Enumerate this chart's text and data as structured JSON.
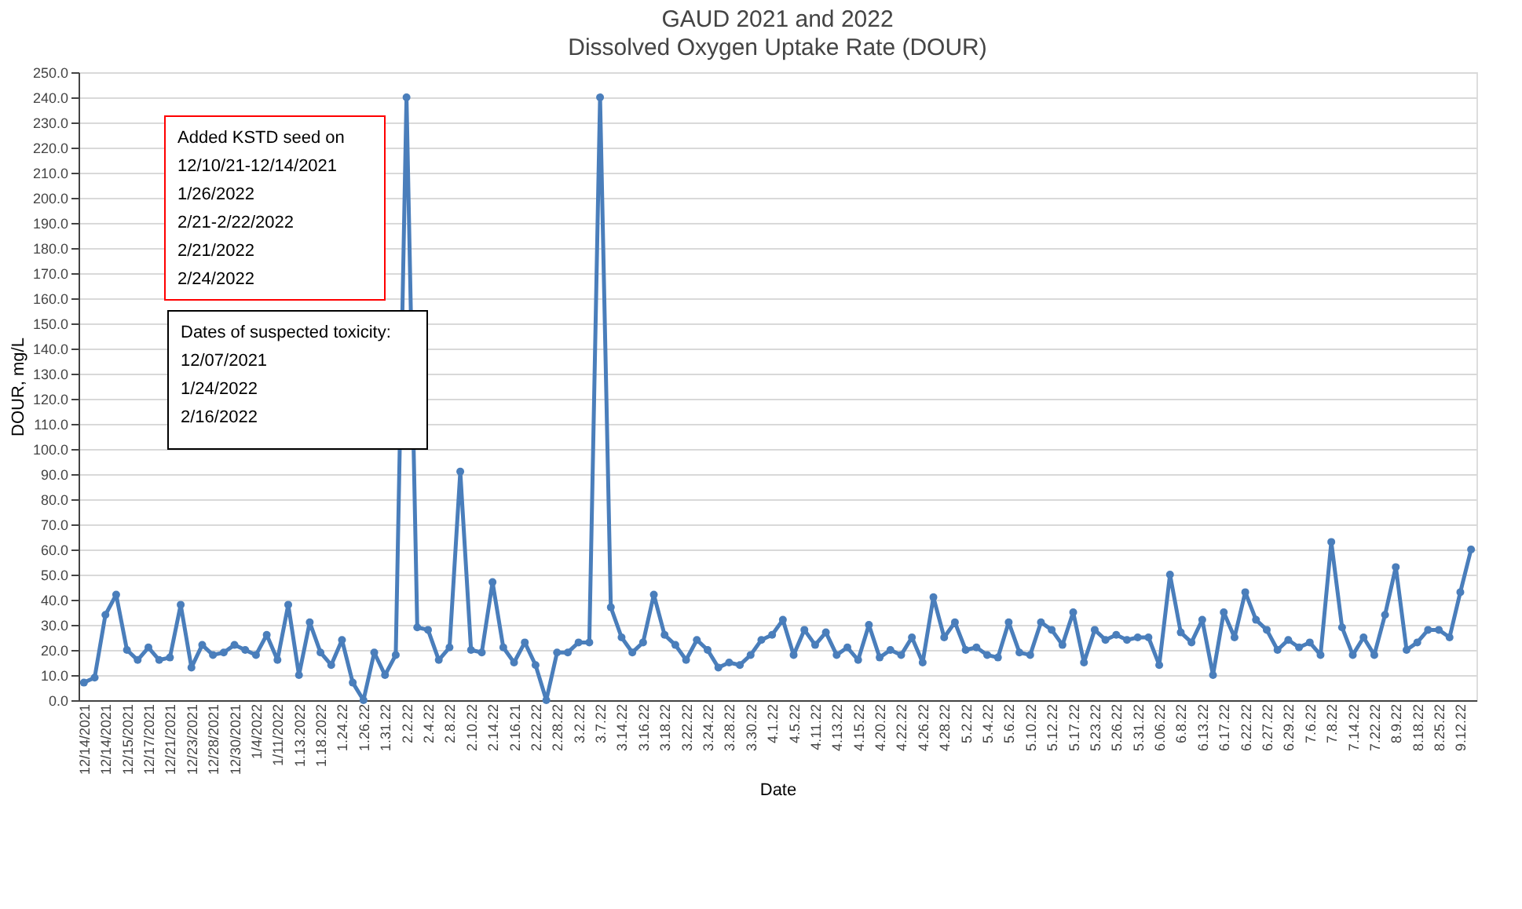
{
  "chart_data": {
    "type": "line",
    "title": "GAUD 2021 and 2022",
    "subtitle": "Dissolved Oxygen Uptake Rate (DOUR)",
    "xlabel": "Date",
    "ylabel": "DOUR, mg/L",
    "categories": [
      "12/14/2021",
      null,
      "12/14/2021",
      null,
      "12/15/2021",
      null,
      "12/17/2021",
      null,
      "12/21/2021",
      null,
      "12/23/2021",
      null,
      "12/28/2021",
      null,
      "12/30/2021",
      null,
      "1/4/2022",
      null,
      "1/11/2022",
      null,
      "1.13.2022",
      null,
      "1.18.2022",
      null,
      "1.24.22",
      null,
      "1.26.22",
      null,
      "1.31.22",
      null,
      "2.2.22",
      null,
      "2.4.22",
      null,
      "2.8.22",
      null,
      "2.10.22",
      null,
      "2.14.22",
      null,
      "2.16.21",
      null,
      "2.22.22",
      null,
      "2.28.22",
      null,
      "3.2.22",
      null,
      "3.7.22",
      null,
      "3.14.22",
      null,
      "3.16.22",
      null,
      "3.18.22",
      null,
      "3.22.22",
      null,
      "3.24.22",
      null,
      "3.28.22",
      null,
      "3.30.22",
      null,
      "4.1.22",
      null,
      "4.5.22",
      null,
      "4.11.22",
      null,
      "4.13.22",
      null,
      "4.15.22",
      null,
      "4.20.22",
      null,
      "4.22.22",
      null,
      "4.26.22",
      null,
      "4.28.22",
      null,
      "5.2.22",
      null,
      "5.4.22",
      null,
      "5.6.22",
      null,
      "5.10.22",
      null,
      "5.12.22",
      null,
      "5.17.22",
      null,
      "5.23.22",
      null,
      "5.26.22",
      null,
      "5.31.22",
      null,
      "6.06.22",
      null,
      "6.8.22",
      null,
      "6.13.22",
      null,
      "6.17.22",
      null,
      "6.22.22",
      null,
      "6.27.22",
      null,
      "6.29.22",
      null,
      "7.6.22",
      null,
      "7.8.22",
      null,
      "7.14.22",
      null,
      "7.22.22",
      null,
      "8.9.22",
      null,
      "8.18.22",
      null,
      "8.25.22",
      null,
      "9.12.22",
      null
    ],
    "series": [
      {
        "color": "#4a7ebb",
        "values": [
          7,
          9,
          34,
          42,
          20,
          16,
          21,
          16,
          17,
          38,
          13,
          22,
          18,
          19,
          22,
          20,
          18,
          26,
          16,
          38,
          10,
          31,
          19,
          14,
          24,
          7,
          0,
          19,
          10,
          18,
          240,
          29,
          28,
          16,
          21,
          91,
          20,
          19,
          47,
          21,
          15,
          23,
          14,
          0,
          19,
          19,
          23,
          23,
          240,
          37,
          25,
          19,
          23,
          42,
          26,
          22,
          16,
          24,
          20,
          13,
          15,
          14,
          18,
          24,
          26,
          32,
          18,
          28,
          22,
          27,
          18,
          21,
          16,
          30,
          17,
          20,
          18,
          25,
          15,
          41,
          25,
          31,
          20,
          21,
          18,
          17,
          31,
          19,
          18,
          31,
          28,
          22,
          35,
          15,
          28,
          24,
          26,
          24,
          25,
          25,
          14,
          50,
          27,
          23,
          32,
          10,
          35,
          25,
          43,
          32,
          28,
          20,
          24,
          21,
          23,
          18,
          63,
          29,
          18,
          25,
          18,
          34,
          53,
          20,
          23,
          28,
          28,
          25,
          43,
          60
        ]
      }
    ],
    "ylim": [
      0,
      250
    ],
    "yticks": [
      {
        "value": 0,
        "label": "0.0"
      },
      {
        "value": 10,
        "label": "10.0"
      },
      {
        "value": 20,
        "label": "20.0"
      },
      {
        "value": 30,
        "label": "30.0"
      },
      {
        "value": 40,
        "label": "40.0"
      },
      {
        "value": 50,
        "label": "50.0"
      },
      {
        "value": 60,
        "label": "60.0"
      },
      {
        "value": 70,
        "label": "70.0"
      },
      {
        "value": 80,
        "label": "80.0"
      },
      {
        "value": 90,
        "label": "90.0"
      },
      {
        "value": 100,
        "label": "100.0"
      },
      {
        "value": 110,
        "label": "110.0"
      },
      {
        "value": 120,
        "label": "120.0"
      },
      {
        "value": 130,
        "label": "130.0"
      },
      {
        "value": 140,
        "label": "140.0"
      },
      {
        "value": 150,
        "label": "150.0"
      },
      {
        "value": 160,
        "label": "160.0"
      },
      {
        "value": 170,
        "label": "170.0"
      },
      {
        "value": 180,
        "label": "180.0"
      },
      {
        "value": 190,
        "label": "190.0"
      },
      {
        "value": 200,
        "label": "200.0"
      },
      {
        "value": 210,
        "label": "210.0"
      },
      {
        "value": 220,
        "label": "220.0"
      },
      {
        "value": 230,
        "label": "230.0"
      },
      {
        "value": 240,
        "label": "240.0"
      },
      {
        "value": 250,
        "label": "250.0"
      }
    ],
    "grid": "y",
    "marker": "circle",
    "line_style": "solid",
    "annotations": [
      "Added KSTD seed on\n12/10/21-12/14/2021\n1/26/2022\n2/21-2/22/2022\n2/21/2022\n2/24/2022",
      "Dates of suspected toxicity:\n12/07/2021\n1/24/2022\n2/16/2022"
    ]
  }
}
